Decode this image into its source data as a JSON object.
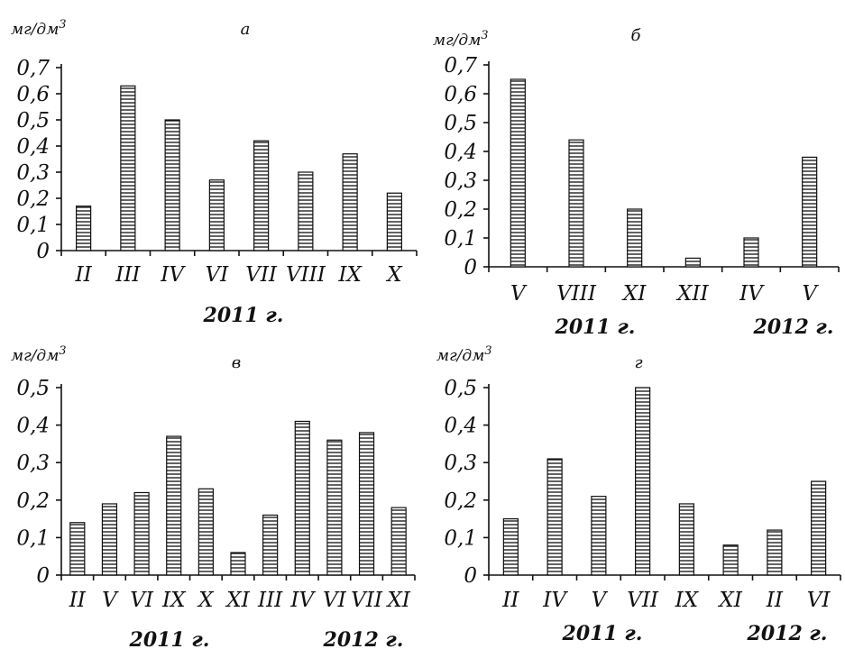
{
  "chart_data": [
    {
      "type": "bar",
      "title": "а",
      "ylabel": "мг/дм3",
      "ylim": [
        0,
        0.7
      ],
      "ystep": 0.1,
      "categories": [
        "II",
        "III",
        "IV",
        "VI",
        "VII",
        "VIII",
        "IX",
        "X"
      ],
      "values": [
        0.17,
        0.63,
        0.5,
        0.27,
        0.42,
        0.3,
        0.37,
        0.22
      ],
      "year_labels": [
        {
          "label": "2011 г.",
          "from": 0,
          "to": 7
        }
      ]
    },
    {
      "type": "bar",
      "title": "б",
      "ylabel": "мг/дм3",
      "ylim": [
        0,
        0.7
      ],
      "ystep": 0.1,
      "categories": [
        "V",
        "VIII",
        "XI",
        "XII",
        "IV",
        "V"
      ],
      "values": [
        0.65,
        0.44,
        0.2,
        0.03,
        0.1,
        0.38
      ],
      "year_labels": [
        {
          "label": "2011 г.",
          "from": 0,
          "to": 3
        },
        {
          "label": "2012 г.",
          "from": 4,
          "to": 5
        }
      ]
    },
    {
      "type": "bar",
      "title": "в",
      "ylabel": "мг/дм3",
      "ylim": [
        0,
        0.5
      ],
      "ystep": 0.1,
      "categories": [
        "II",
        "V",
        "VI",
        "IX",
        "X",
        "XI",
        "III",
        "IV",
        "VI",
        "VII",
        "XI"
      ],
      "values": [
        0.14,
        0.19,
        0.22,
        0.37,
        0.23,
        0.06,
        0.16,
        0.41,
        0.36,
        0.38,
        0.18
      ],
      "year_labels": [
        {
          "label": "2011 г.",
          "from": 0,
          "to": 5
        },
        {
          "label": "2012 г.",
          "from": 6,
          "to": 10
        }
      ]
    },
    {
      "type": "bar",
      "title": "г",
      "ylabel": "мг/дм3",
      "ylim": [
        0,
        0.5
      ],
      "ystep": 0.1,
      "categories": [
        "II",
        "IV",
        "V",
        "VII",
        "IX",
        "XI",
        "II",
        "VI"
      ],
      "values": [
        0.15,
        0.31,
        0.21,
        0.5,
        0.19,
        0.08,
        0.12,
        0.25
      ],
      "year_labels": [
        {
          "label": "2011 г.",
          "from": 0,
          "to": 5
        },
        {
          "label": "2012 г.",
          "from": 6,
          "to": 7
        }
      ]
    }
  ]
}
